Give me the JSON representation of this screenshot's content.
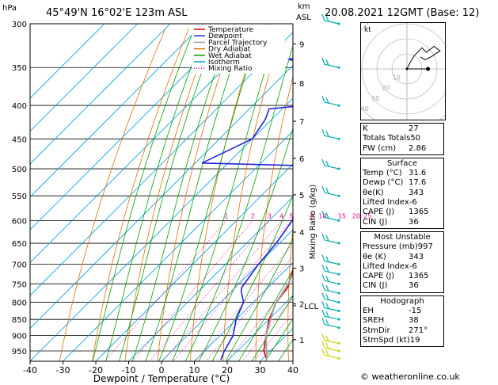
{
  "header": {
    "hpa_label": "hPa",
    "location": "45°49'N  16°02'E  123m  ASL",
    "km_label": "km",
    "asl_label": "ASL",
    "datetime": "20.08.2021  12GMT  (Base: 12)"
  },
  "chart_data": {
    "type": "line",
    "xlabel": "Dewpoint / Temperature (°C)",
    "right_axis_label": "Mixing Ratio (g/kg)",
    "x_ticks": [
      -40,
      -30,
      -20,
      -10,
      0,
      10,
      20,
      30,
      40
    ],
    "xlim": [
      -40,
      40
    ],
    "pressure_levels": [
      300,
      350,
      400,
      450,
      500,
      550,
      600,
      650,
      700,
      750,
      800,
      850,
      900,
      950
    ],
    "ylim_hpa": [
      300,
      985
    ],
    "y_scale": "log",
    "km_ticks": [
      {
        "km": "1",
        "p": 913
      },
      {
        "km": "2",
        "p": 805
      },
      {
        "km": "3",
        "p": 710
      },
      {
        "km": "4",
        "p": 625
      },
      {
        "km": "5",
        "p": 548
      },
      {
        "km": "6",
        "p": 482
      },
      {
        "km": "7",
        "p": 423
      },
      {
        "km": "8",
        "p": 370
      },
      {
        "km": "9",
        "p": 322
      }
    ],
    "lcl_label": "LCL",
    "lcl_p": 810,
    "mixing_ratio_labels": [
      "1",
      "2",
      "3",
      "4",
      "5",
      "8",
      "10",
      "15",
      "20",
      "25"
    ],
    "legend": [
      "Temperature",
      "Dewpoint",
      "Parcel Trajectory",
      "Dry Adiabat",
      "Wet Adiabat",
      "Isotherm",
      "Mixing Ratio"
    ],
    "legend_placement": "top-left",
    "series": [
      {
        "name": "Temperature",
        "color": "#e00000",
        "points": [
          [
            980,
            31.6
          ],
          [
            950,
            28
          ],
          [
            900,
            24
          ],
          [
            850,
            20
          ],
          [
            800,
            17
          ],
          [
            760,
            16
          ],
          [
            700,
            11
          ],
          [
            650,
            6
          ],
          [
            600,
            2
          ],
          [
            550,
            -2
          ],
          [
            500,
            -8
          ],
          [
            490,
            -10
          ],
          [
            480,
            -10
          ],
          [
            460,
            -12
          ],
          [
            450,
            -13
          ],
          [
            400,
            -20
          ],
          [
            350,
            -28
          ],
          [
            300,
            -36
          ]
        ]
      },
      {
        "name": "Dewpoint",
        "color": "#2020e0",
        "points": [
          [
            980,
            17.6
          ],
          [
            950,
            16
          ],
          [
            900,
            14
          ],
          [
            850,
            10
          ],
          [
            800,
            7
          ],
          [
            770,
            3
          ],
          [
            760,
            2
          ],
          [
            700,
            0
          ],
          [
            650,
            -1
          ],
          [
            600,
            -3
          ],
          [
            570,
            -6
          ],
          [
            550,
            -7
          ],
          [
            520,
            -8
          ],
          [
            500,
            -12
          ],
          [
            495,
            -14
          ],
          [
            490,
            -48
          ],
          [
            450,
            -40
          ],
          [
            420,
            -42
          ],
          [
            405,
            -44
          ],
          [
            400,
            -34
          ],
          [
            385,
            -34
          ],
          [
            375,
            -36
          ],
          [
            360,
            -44
          ],
          [
            350,
            -44
          ],
          [
            340,
            -53
          ],
          [
            330,
            -46
          ],
          [
            318,
            -51
          ],
          [
            310,
            -42
          ],
          [
            300,
            -42
          ]
        ]
      },
      {
        "name": "Parcel Trajectory",
        "color": "#a0a0a0",
        "points": [
          [
            980,
            31.6
          ],
          [
            900,
            24
          ],
          [
            810,
            17.5
          ],
          [
            750,
            15
          ],
          [
            700,
            12
          ],
          [
            650,
            8.5
          ],
          [
            600,
            5
          ],
          [
            550,
            1
          ],
          [
            500,
            -3.5
          ],
          [
            450,
            -9
          ],
          [
            400,
            -15
          ],
          [
            350,
            -22
          ],
          [
            300,
            -30
          ]
        ]
      }
    ],
    "wind_barbs": [
      {
        "p": 975,
        "color": "#d0d000"
      },
      {
        "p": 950,
        "color": "#d0d000"
      },
      {
        "p": 925,
        "color": "#d0d000"
      },
      {
        "p": 875,
        "color": "#00aaaa"
      },
      {
        "p": 850,
        "color": "#00aaaa"
      },
      {
        "p": 825,
        "color": "#00aaaa"
      },
      {
        "p": 800,
        "color": "#00aaaa"
      },
      {
        "p": 775,
        "color": "#00aaaa"
      },
      {
        "p": 750,
        "color": "#00aaaa"
      },
      {
        "p": 725,
        "color": "#00aaaa"
      },
      {
        "p": 700,
        "color": "#00aaaa"
      },
      {
        "p": 650,
        "color": "#00aaaa"
      },
      {
        "p": 600,
        "color": "#00aaaa"
      },
      {
        "p": 550,
        "color": "#00aaaa"
      },
      {
        "p": 500,
        "color": "#00aaaa"
      },
      {
        "p": 450,
        "color": "#00aaaa"
      },
      {
        "p": 400,
        "color": "#00aaaa"
      },
      {
        "p": 350,
        "color": "#00aaaa"
      },
      {
        "p": 300,
        "color": "#00aaaa"
      }
    ],
    "colors": {
      "dry_adiabat": "#e07000",
      "wet_adiabat": "#00a000",
      "isotherm": "#00a0e0",
      "mixing_ratio": "#e000a0"
    }
  },
  "hodograph": {
    "unit_label": "kt",
    "ring_labels": [
      "10",
      "20",
      "30",
      "40"
    ],
    "points": [
      [
        0,
        0
      ],
      [
        2,
        4
      ],
      [
        5,
        9
      ],
      [
        10,
        14
      ],
      [
        13,
        11
      ],
      [
        18,
        15
      ],
      [
        22,
        12
      ],
      [
        16,
        8
      ],
      [
        12,
        6
      ],
      [
        9,
        8
      ]
    ],
    "storm_motion": [
      14,
      0
    ]
  },
  "indices": {
    "K": "27",
    "Totals Totals": "50",
    "PW (cm)": "2.86"
  },
  "surface": {
    "title": "Surface",
    "rows": [
      {
        "label": "Temp (°C)",
        "value": "31.6"
      },
      {
        "label": "Dewp (°C)",
        "value": "17.6"
      },
      {
        "label": "θe(K)",
        "value": "343"
      },
      {
        "label": "Lifted Index",
        "value": "-6"
      },
      {
        "label": "CAPE (J)",
        "value": "1365"
      },
      {
        "label": "CIN (J)",
        "value": "36"
      }
    ]
  },
  "most_unstable": {
    "title": "Most Unstable",
    "rows": [
      {
        "label": "Pressure (mb)",
        "value": "997"
      },
      {
        "label": "θe (K)",
        "value": "343"
      },
      {
        "label": "Lifted Index",
        "value": "-6"
      },
      {
        "label": "CAPE (J)",
        "value": "1365"
      },
      {
        "label": "CIN (J)",
        "value": "36"
      }
    ]
  },
  "hodograph_box": {
    "title": "Hodograph",
    "rows": [
      {
        "label": "EH",
        "value": "-15"
      },
      {
        "label": "SREH",
        "value": "38"
      },
      {
        "label": "StmDir",
        "value": "271°"
      },
      {
        "label": "StmSpd (kt)",
        "value": "19"
      }
    ]
  },
  "footer": "© weatheronline.co.uk"
}
